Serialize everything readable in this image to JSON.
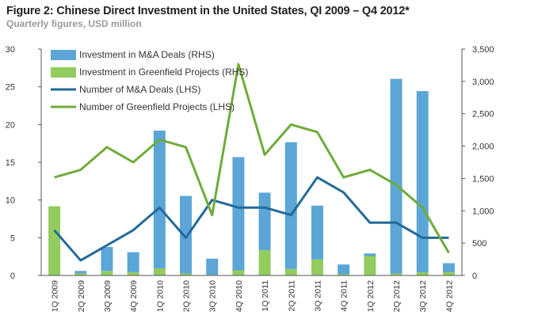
{
  "title": "Figure 2: Chinese Direct Investment in the United States, QI 2009 – Q4 2012*",
  "subtitle": "Quarterly figures, USD million",
  "colors": {
    "ma_bar": "#5ba6d6",
    "greenfield_bar": "#92cc5e",
    "ma_line": "#236a9a",
    "greenfield_line": "#6fac3b",
    "axis": "#555555"
  },
  "chart_data": {
    "type": "bar",
    "categories": [
      "1Q 2009",
      "2Q 2009",
      "3Q 2009",
      "4Q 2009",
      "1Q 2010",
      "2Q 2010",
      "3Q 2010",
      "4Q 2010",
      "1Q 2011",
      "2Q 2011",
      "3Q 2011",
      "4Q 2011",
      "1Q 2012",
      "2Q 2012",
      "3Q 2012",
      "4Q 2012"
    ],
    "left_axis": {
      "ylim": [
        0,
        30
      ],
      "ticks": [
        "0",
        "5",
        "10",
        "15",
        "20",
        "25",
        "30"
      ]
    },
    "right_axis": {
      "ylim": [
        0,
        3500
      ],
      "ticks": [
        "0",
        "500",
        "1,000",
        "1,500",
        "2,000",
        "2,500",
        "3,000",
        "3,500"
      ]
    },
    "series": [
      {
        "name": "Investment in M&A Deals (RHS)",
        "kind": "stacked-bar",
        "axis": "right",
        "values": [
          0,
          40,
          370,
          310,
          2130,
          1200,
          250,
          1750,
          890,
          1960,
          830,
          150,
          40,
          3010,
          2800,
          140
        ]
      },
      {
        "name": "Investment in Greenfield Projects (RHS)",
        "kind": "stacked-bar",
        "axis": "right",
        "values": [
          1070,
          30,
          70,
          50,
          110,
          30,
          10,
          80,
          390,
          100,
          250,
          20,
          300,
          30,
          50,
          50
        ]
      },
      {
        "name": "Number of M&A Deals (LHS)",
        "kind": "line",
        "axis": "left",
        "values": [
          6,
          2,
          4,
          6,
          9,
          5,
          10,
          9,
          9,
          8,
          13,
          11,
          7,
          7,
          5,
          5
        ]
      },
      {
        "name": "Number of Greenfield Projects (LHS)",
        "kind": "line",
        "axis": "left",
        "values": [
          13,
          14,
          17,
          15,
          18,
          17,
          8,
          28,
          16,
          20,
          19,
          13,
          14,
          12,
          9,
          3
        ]
      }
    ]
  }
}
